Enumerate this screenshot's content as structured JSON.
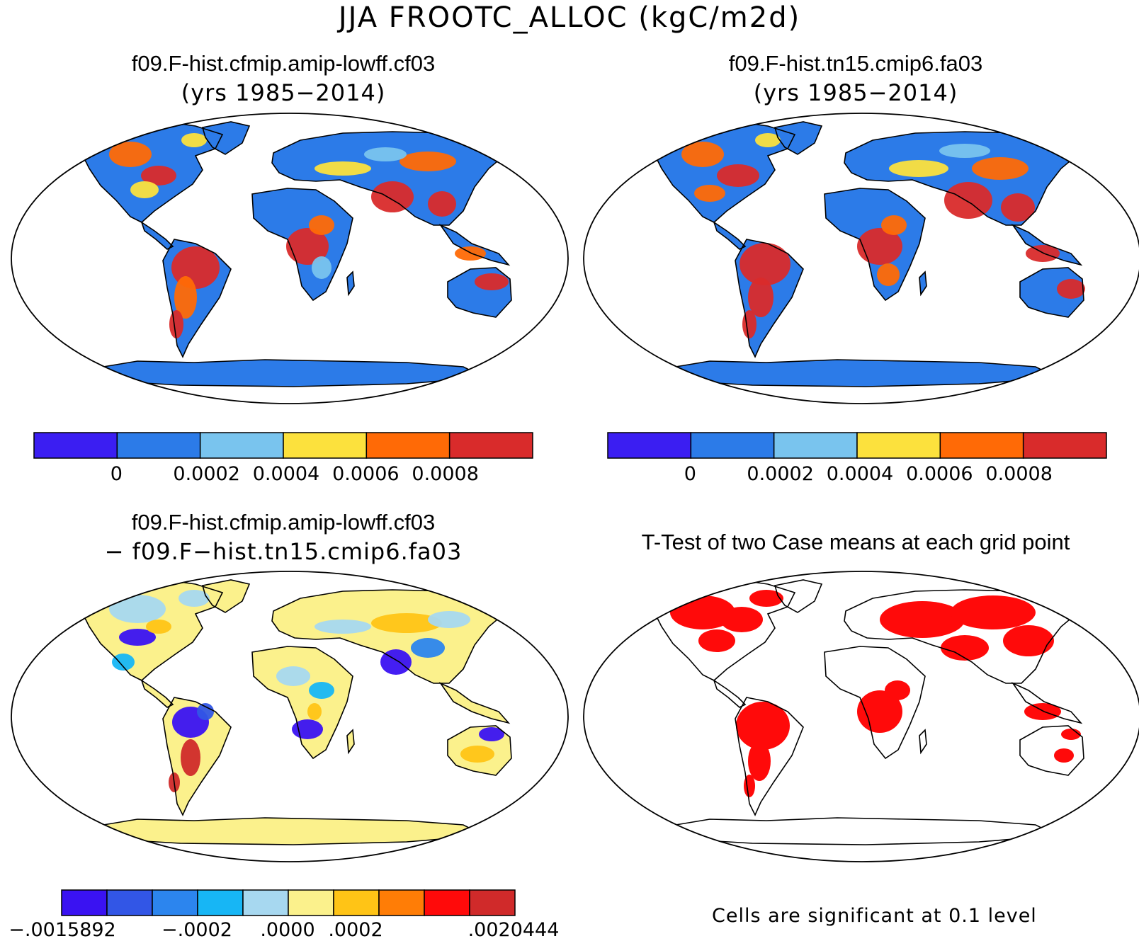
{
  "figure": {
    "title": "JJA FROOTC_ALLOC (kgC/m2d)"
  },
  "panels": {
    "p1": {
      "title": "f09.F-hist.cfmip.amip-lowff.cf03",
      "subtitle": "(yrs 1985−2014)"
    },
    "p2": {
      "title": "f09.F-hist.tn15.cmip6.fa03",
      "subtitle": "(yrs 1985−2014)"
    },
    "p3": {
      "title": "f09.F-hist.cfmip.amip-lowff.cf03",
      "subtitle": "− f09.F−hist.tn15.cmip6.fa03"
    },
    "p4": {
      "title": "T-Test of two Case means at each grid point",
      "note": "Cells are significant at 0.1 level"
    }
  },
  "colorbar_top": {
    "colors": [
      "#3b1ef2",
      "#2c7be8",
      "#79c4ee",
      "#fce13d",
      "#ff6a06",
      "#d92b2b"
    ],
    "ticks": [
      "0",
      "0.0002",
      "0.0004",
      "0.0006",
      "0.0008"
    ]
  },
  "colorbar_diff": {
    "colors": [
      "#3a12f2",
      "#3256e6",
      "#2c85ee",
      "#17b6f5",
      "#a7d8f0",
      "#fbf18c",
      "#ffc416",
      "#ff7d06",
      "#ff0a0a",
      "#d02a2a"
    ],
    "ticks": [
      "−.0015892",
      "−.0002",
      ".0000",
      ".0002",
      ".0020444"
    ]
  },
  "significance_color": "#ff0a0a",
  "land_color_p1": "#2c7be8",
  "land_color_p3": "#fbf18c"
}
